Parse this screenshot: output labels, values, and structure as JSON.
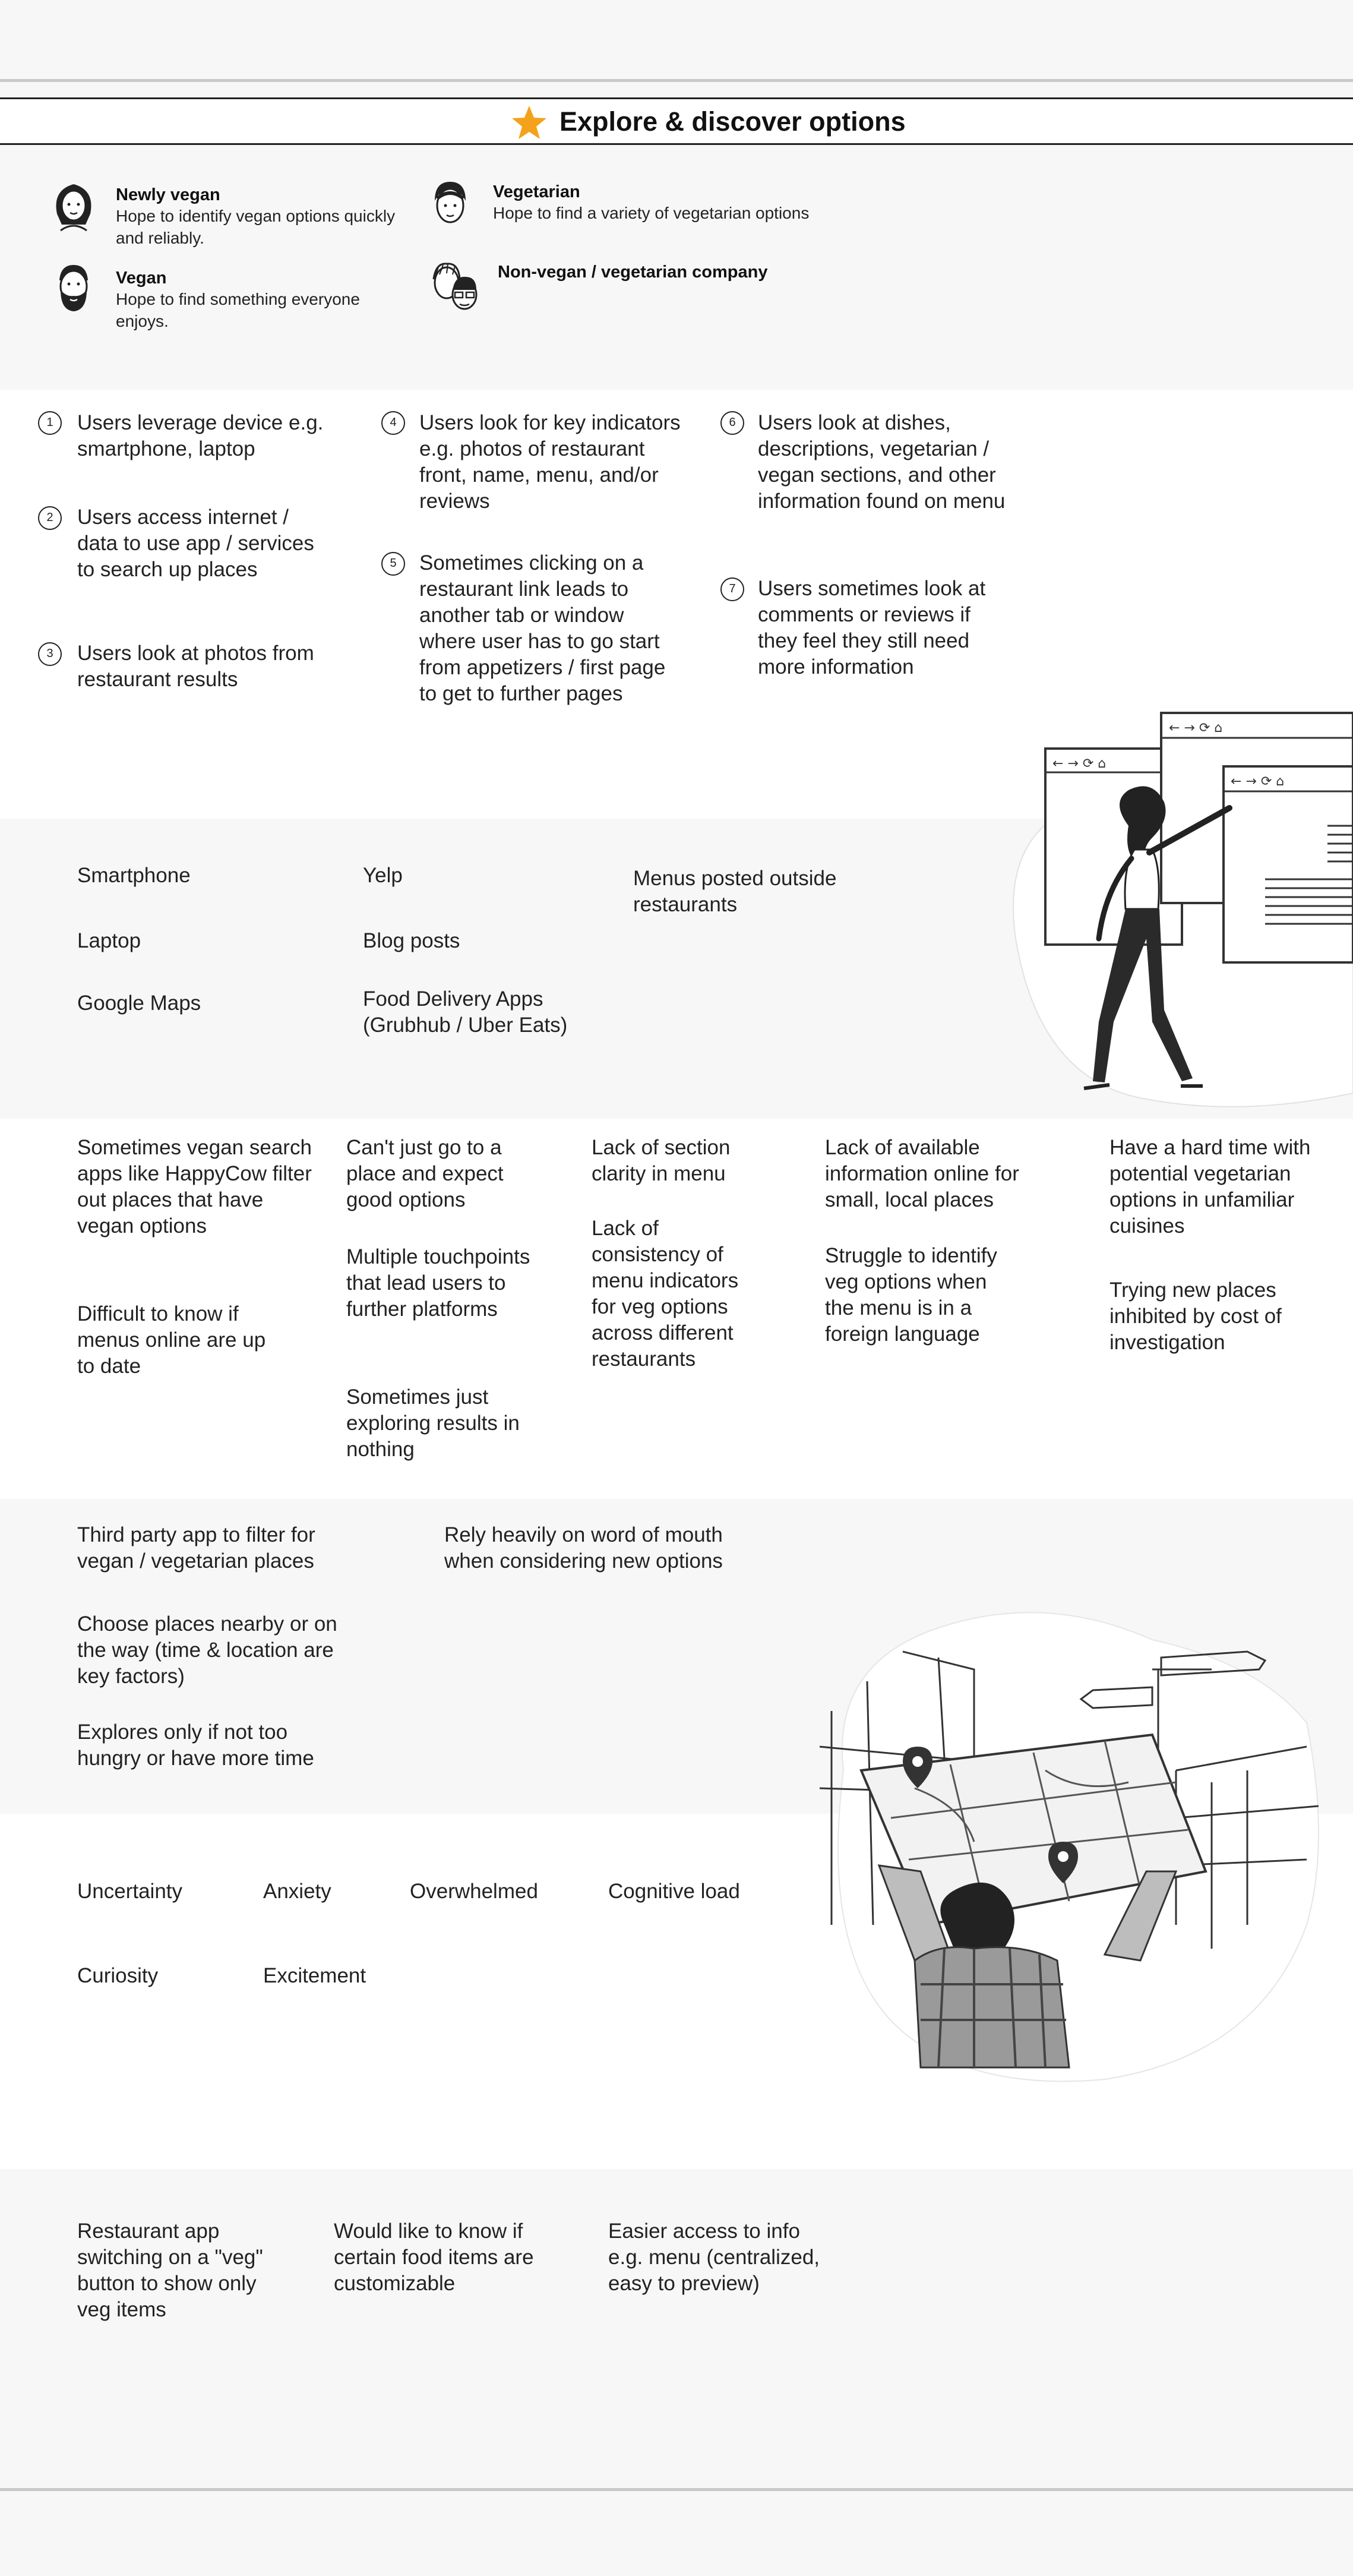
{
  "header": {
    "title": "Explore & discover options"
  },
  "personas": [
    {
      "name": "Newly vegan",
      "desc": "Hope to identify vegan options quickly and reliably."
    },
    {
      "name": "Vegetarian",
      "desc": "Hope to find a variety of vegetarian options"
    },
    {
      "name": "Vegan",
      "desc": "Hope to find something everyone enjoys."
    },
    {
      "name": "Non-vegan / vegetarian company",
      "desc": ""
    }
  ],
  "steps": [
    {
      "num": "1",
      "text": "Users leverage device e.g. smartphone, laptop"
    },
    {
      "num": "2",
      "text": "Users access internet / data to use app / services to search up places"
    },
    {
      "num": "3",
      "text": "Users look at photos from restaurant results"
    },
    {
      "num": "4",
      "text": "Users look for key indicators e.g. photos of restaurant front, name, menu, and/or reviews"
    },
    {
      "num": "5",
      "text": "Sometimes clicking on a restaurant link leads to another tab or window where user has to go start from appetizers / first page to get to further pages"
    },
    {
      "num": "6",
      "text": "Users look at dishes, descriptions, vegetarian / vegan sections, and other information found on menu"
    },
    {
      "num": "7",
      "text": "Users sometimes look at comments or reviews if they feel they still need more information"
    }
  ],
  "touchpoints": [
    "Smartphone",
    "Laptop",
    "Google Maps",
    "Yelp",
    "Blog posts",
    "Food Delivery Apps (Grubhub / Uber Eats)",
    "Menus posted outside restaurants"
  ],
  "pain_points": [
    "Sometimes vegan search apps like HappyCow filter out places that have vegan options",
    "Difficult to know if menus online are up to date",
    "Can't just go to a place and expect good options",
    "Multiple touchpoints that lead users to further platforms",
    "Sometimes just exploring results in nothing",
    "Lack of section clarity in menu",
    "Lack of consistency of menu indicators for veg options across different restaurants",
    "Lack of available information online for small, local places",
    "Struggle to identify veg options when the menu is in a foreign language",
    "Have a hard time with potential vegetarian options in unfamiliar cuisines",
    "Trying new places inhibited by cost of investigation"
  ],
  "behaviors": [
    "Third party app to filter for vegan / vegetarian places",
    "Choose places nearby or on the way (time & location are key factors)",
    "Explores only if not too hungry or have more time",
    "Rely heavily on word of mouth when considering new options"
  ],
  "emotions": [
    "Uncertainty",
    "Anxiety",
    "Overwhelmed",
    "Cognitive load",
    "Curiosity",
    "Excitement"
  ],
  "opportunities": [
    "Restaurant app switching on a \"veg\" button to show only veg items",
    "Would like to know if certain food items are customizable",
    "Easier access to info e.g. menu (centralized, easy to preview)"
  ],
  "colors": {
    "star": "#f4a21b",
    "ink": "#222222",
    "band_gray": "#f7f7f7",
    "band_white": "#ffffff"
  }
}
